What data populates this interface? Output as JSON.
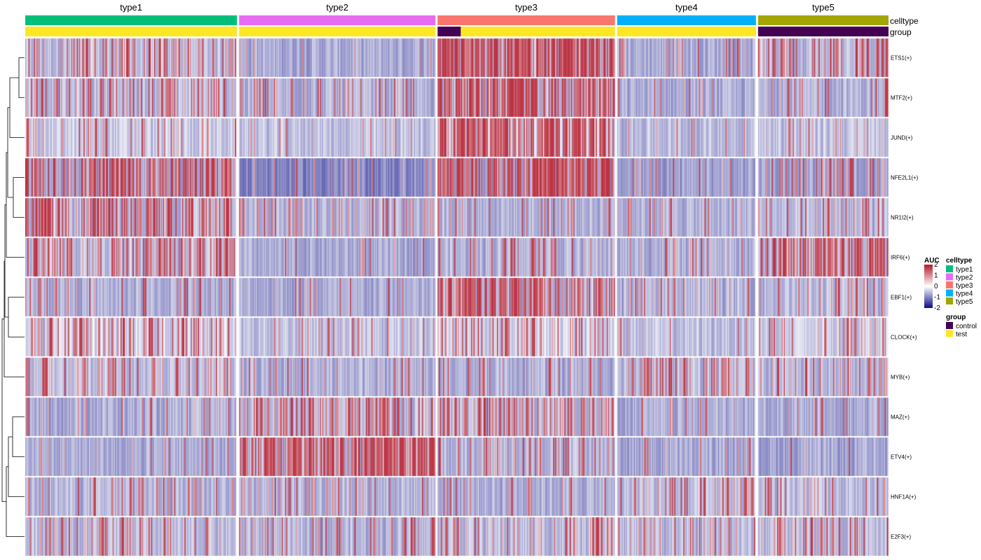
{
  "chart_data": {
    "type": "heatmap",
    "title": "",
    "xlabel": "",
    "ylabel": "",
    "column_groups": [
      {
        "name": "type1",
        "cells": 302,
        "control_cells": 0
      },
      {
        "name": "type2",
        "cells": 280,
        "control_cells": 0
      },
      {
        "name": "type3",
        "cells": 253,
        "control_cells": 33
      },
      {
        "name": "type4",
        "cells": 198,
        "control_cells": 0
      },
      {
        "name": "type5",
        "cells": 186,
        "control_cells": 186
      }
    ],
    "rows": [
      "ETS1(+)",
      "MTF2(+)",
      "JUND(+)",
      "NFE2L1(+)",
      "NR1I2(+)",
      "IRF6(+)",
      "EBF1(+)",
      "CLOCK(+)",
      "MYB(+)",
      "MAZ(+)",
      "ETV4(+)",
      "HNF1A(+)",
      "E2F3(+)"
    ],
    "mean_scaled_auc": [
      [
        0.3,
        -0.6,
        1.8,
        -0.5,
        0.6
      ],
      [
        0.2,
        -0.4,
        1.8,
        -0.6,
        -0.3
      ],
      [
        -0.3,
        -0.6,
        1.5,
        -0.7,
        -0.5
      ],
      [
        1.1,
        -1.1,
        1.6,
        -0.3,
        -0.1
      ],
      [
        0.8,
        -0.2,
        -0.3,
        -0.3,
        -0.2
      ],
      [
        0.6,
        -0.7,
        -0.3,
        -0.4,
        1.4
      ],
      [
        -0.4,
        -0.6,
        1.1,
        -0.3,
        -0.1
      ],
      [
        0.3,
        -0.5,
        0.2,
        -0.6,
        -0.1
      ],
      [
        0.0,
        -0.4,
        -0.4,
        0.3,
        -0.2
      ],
      [
        -0.5,
        0.5,
        0.6,
        -0.6,
        -0.5
      ],
      [
        -0.6,
        1.7,
        -0.1,
        -0.7,
        -0.8
      ],
      [
        -0.2,
        -0.2,
        -0.4,
        0.2,
        -0.1
      ],
      [
        -0.1,
        -0.3,
        0.0,
        -0.1,
        0.0
      ]
    ],
    "row_baseline": [
      -0.6,
      -0.6,
      -0.4,
      -0.8,
      -0.6,
      -0.6,
      -0.6,
      -0.4,
      -0.6,
      -0.6,
      -0.6,
      -0.6,
      -0.6
    ],
    "color_scale": {
      "min": -2,
      "max": 2,
      "low": "#0b0b86",
      "mid": "#ffffff",
      "high": "#b2182b"
    },
    "annotations": [
      {
        "label": "celltype",
        "colors": {
          "type1": "#00BF7D",
          "type2": "#E76BF3",
          "type3": "#F8766D",
          "type4": "#00B0F6",
          "type5": "#A3A500"
        }
      },
      {
        "label": "group",
        "colors": {
          "control": "#440154",
          "test": "#FDE725"
        }
      }
    ],
    "legends": [
      {
        "title": "AUC",
        "ticks": [
          2,
          1,
          0,
          -1,
          -2
        ]
      },
      {
        "title": "celltype",
        "items": [
          "type1",
          "type2",
          "type3",
          "type4",
          "type5"
        ]
      },
      {
        "title": "group",
        "items": [
          "control",
          "test"
        ]
      }
    ],
    "row_dendrogram": "shown, left side",
    "grid": false
  }
}
